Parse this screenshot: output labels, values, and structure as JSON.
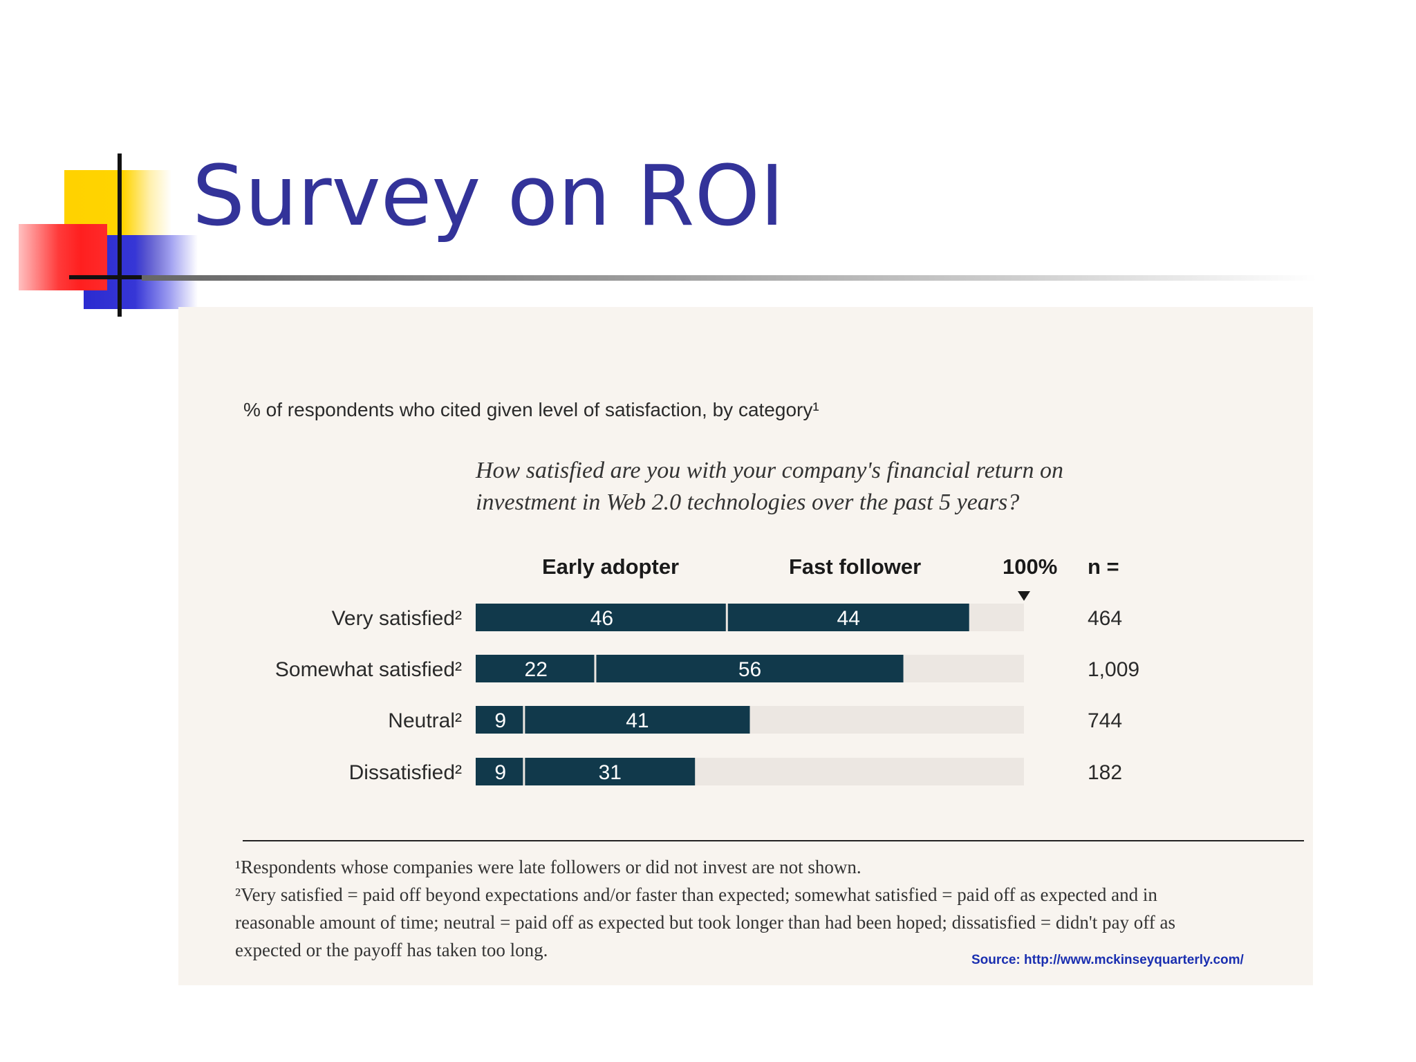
{
  "slide": {
    "title": "Survey on ROI"
  },
  "chart_data": {
    "type": "bar",
    "subtitle": "% of respondents who cited given level of satisfaction, by category¹",
    "question": "How satisfied are you with your company's financial return on investment in Web 2.0 technologies over the past 5 years?",
    "categories": [
      "Very satisfied²",
      "Somewhat satisfied²",
      "Neutral²",
      "Dissatisfied²"
    ],
    "series": [
      {
        "name": "Early adopter",
        "values": [
          46,
          22,
          9,
          9
        ],
        "color": "#11394b"
      },
      {
        "name": "Fast follower",
        "values": [
          44,
          56,
          41,
          31
        ],
        "color": "#11394b"
      }
    ],
    "total_label": "100%",
    "n_label": "n =",
    "n_values": [
      "464",
      "1,009",
      "744",
      "182"
    ],
    "xlim": [
      0,
      100
    ],
    "track_color": "#ece7e2",
    "stacked": true,
    "legend": "top"
  },
  "notes": {
    "note1": "¹Respondents whose companies were late followers or did not invest are not shown.",
    "note2": "²Very satisfied = paid off beyond expectations and/or faster than expected; somewhat satisfied = paid off as expected and in reasonable amount of time; neutral = paid off as expected but took longer than had been hoped; dissatisfied = didn't pay off as expected or the payoff has taken too long.",
    "source": "Source: http://www.mckinseyquarterly.com/"
  }
}
